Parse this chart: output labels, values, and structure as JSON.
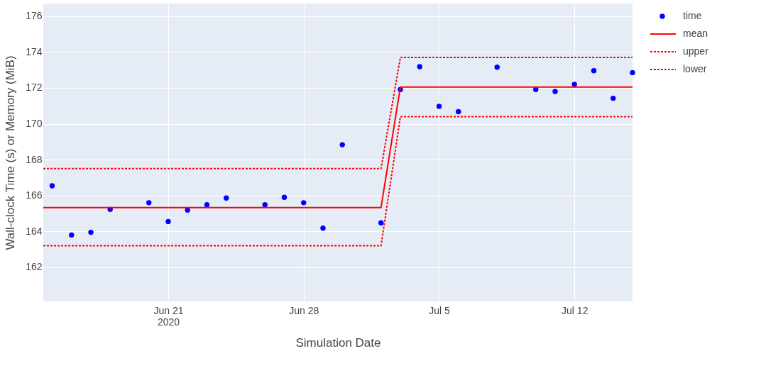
{
  "chart_data": {
    "type": "scatter",
    "xlabel": "Simulation Date",
    "ylabel": "Wall-clock Time (s) or Memory (MiB)",
    "xlim": [
      "2020-06-14T13:00",
      "2020-07-15T00:00"
    ],
    "xticks": [
      {
        "value": "2020-06-21",
        "label": "Jun 21\n2020"
      },
      {
        "value": "2020-06-28",
        "label": "Jun 28"
      },
      {
        "value": "2020-07-05",
        "label": "Jul 5"
      },
      {
        "value": "2020-07-12",
        "label": "Jul 12"
      }
    ],
    "ylim": [
      160.1,
      176.7
    ],
    "yticks": [
      162,
      164,
      166,
      168,
      170,
      172,
      174,
      176
    ],
    "grid": true,
    "legend": "top right",
    "series": [
      {
        "name": "time",
        "marker": "circle",
        "color": "#0000ff",
        "x": [
          "2020-06-15",
          "2020-06-16",
          "2020-06-17",
          "2020-06-18",
          "2020-06-20",
          "2020-06-21",
          "2020-06-22",
          "2020-06-23",
          "2020-06-24",
          "2020-06-26",
          "2020-06-27",
          "2020-06-28",
          "2020-06-29",
          "2020-06-30",
          "2020-07-02",
          "2020-07-03",
          "2020-07-04",
          "2020-07-05",
          "2020-07-06",
          "2020-07-08",
          "2020-07-10",
          "2020-07-11",
          "2020-07-12",
          "2020-07-13",
          "2020-07-14",
          "2020-07-15"
        ],
        "values": [
          166.54,
          163.8,
          163.95,
          165.23,
          165.6,
          164.55,
          165.19,
          165.49,
          165.86,
          165.49,
          165.9,
          165.6,
          164.18,
          168.83,
          164.48,
          171.91,
          173.18,
          170.97,
          170.67,
          173.15,
          171.91,
          171.8,
          172.2,
          172.96,
          171.42,
          172.85
        ]
      },
      {
        "name": "mean",
        "type": "line",
        "color": "#ff0000",
        "line_style": "solid",
        "x": [
          "2020-06-14T13:00",
          "2020-07-02",
          "2020-07-03",
          "2020-07-15"
        ],
        "values": [
          165.33,
          165.33,
          172.05,
          172.05
        ]
      },
      {
        "name": "upper",
        "type": "line",
        "color": "#ff0000",
        "line_style": "dotted",
        "x": [
          "2020-06-14T13:00",
          "2020-07-02",
          "2020-07-03",
          "2020-07-15"
        ],
        "values": [
          167.5,
          167.5,
          173.7,
          173.7
        ]
      },
      {
        "name": "lower",
        "type": "line",
        "color": "#ff0000",
        "line_style": "dotted",
        "x": [
          "2020-06-14T13:00",
          "2020-07-02",
          "2020-07-03",
          "2020-07-15"
        ],
        "values": [
          163.2,
          163.2,
          170.4,
          170.4
        ]
      }
    ]
  }
}
